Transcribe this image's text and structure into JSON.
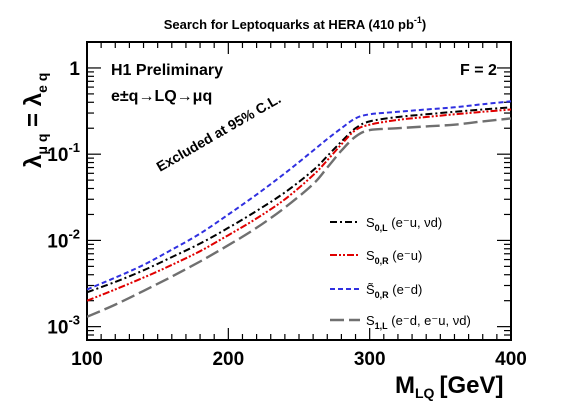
{
  "chart_data": {
    "type": "line",
    "title": "Search for Leptoquarks at HERA (410 pb",
    "title_sup": "-1",
    "title_end": ")",
    "xlabel": "M",
    "xlabel_sub": "LQ",
    "xlabel_unit": "[GeV]",
    "ylabel_left": "λ",
    "ylabel_left_sub": "μ q",
    "ylabel_mid": " = λ",
    "ylabel_right_sub": "e q",
    "xlim": [
      100,
      400
    ],
    "ylim": [
      0.0007,
      2
    ],
    "yscale": "log",
    "xticks": [
      {
        "value": 100,
        "label": "100"
      },
      {
        "value": 200,
        "label": "200"
      },
      {
        "value": 300,
        "label": "300"
      },
      {
        "value": 400,
        "label": "400"
      }
    ],
    "yticks": [
      {
        "value": 1,
        "base": "1",
        "exp": ""
      },
      {
        "value": 0.1,
        "base": "10",
        "exp": "-1"
      },
      {
        "value": 0.01,
        "base": "10",
        "exp": "-2"
      },
      {
        "value": 0.001,
        "base": "10",
        "exp": "-3"
      }
    ],
    "annotations": {
      "experiment": "H1 Preliminary",
      "process": "e±q→LQ→μq",
      "coupling": "F = 2",
      "excluded": "Excluded at 95% C.L."
    },
    "legend_position": "bottom-right",
    "series": [
      {
        "name": "S0,L (e⁻u, νd)",
        "label_main": "S",
        "label_sub": "0,L",
        "label_rest": " (e⁻u, νd)",
        "color": "#000000",
        "dash": "7,3,2,3",
        "x": [
          100,
          120,
          140,
          160,
          180,
          200,
          220,
          240,
          260,
          270,
          280,
          290,
          300,
          320,
          340,
          360,
          380,
          400
        ],
        "y": [
          0.0025,
          0.0033,
          0.0045,
          0.0064,
          0.0092,
          0.014,
          0.022,
          0.036,
          0.065,
          0.095,
          0.14,
          0.2,
          0.24,
          0.27,
          0.29,
          0.31,
          0.33,
          0.35
        ]
      },
      {
        "name": "S0,R (e⁻u)",
        "label_main": "S",
        "label_sub": "0,R",
        "label_rest": " (e⁻u)",
        "color": "#e00000",
        "dash": "7,2,2,2,2,2",
        "x": [
          100,
          120,
          140,
          160,
          180,
          200,
          220,
          240,
          260,
          270,
          280,
          290,
          300,
          320,
          340,
          360,
          380,
          400
        ],
        "y": [
          0.002,
          0.0027,
          0.0037,
          0.0052,
          0.0075,
          0.0115,
          0.018,
          0.03,
          0.057,
          0.085,
          0.13,
          0.19,
          0.22,
          0.25,
          0.27,
          0.29,
          0.31,
          0.33
        ]
      },
      {
        "name": "S̃0,R (e⁻d)",
        "label_main": "S̃",
        "label_sub": "0,R",
        "label_rest": " (e⁻d)",
        "color": "#3030e0",
        "dash": "5,3",
        "x": [
          100,
          120,
          140,
          160,
          180,
          200,
          220,
          240,
          260,
          270,
          280,
          290,
          300,
          320,
          340,
          360,
          380,
          400
        ],
        "y": [
          0.0027,
          0.0037,
          0.0052,
          0.0078,
          0.012,
          0.02,
          0.034,
          0.06,
          0.11,
          0.15,
          0.2,
          0.26,
          0.29,
          0.31,
          0.33,
          0.35,
          0.38,
          0.41
        ]
      },
      {
        "name": "S1,L (e⁻d, e⁻u, νd)",
        "label_main": "S",
        "label_sub": "1,L",
        "label_rest": " (e⁻d, e⁻u, νd)",
        "color": "#707070",
        "dash": "14,5",
        "x": [
          100,
          120,
          140,
          160,
          180,
          200,
          220,
          240,
          260,
          270,
          280,
          290,
          300,
          320,
          340,
          360,
          380,
          400
        ],
        "y": [
          0.0013,
          0.0018,
          0.0026,
          0.0038,
          0.0057,
          0.0088,
          0.014,
          0.024,
          0.045,
          0.07,
          0.11,
          0.16,
          0.19,
          0.2,
          0.21,
          0.22,
          0.24,
          0.26
        ]
      }
    ]
  }
}
